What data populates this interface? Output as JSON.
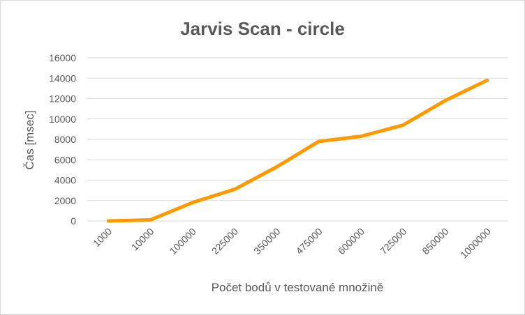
{
  "chart_data": {
    "type": "line",
    "title": "Jarvis Scan - circle",
    "xlabel": "Počet bodů v testované množině",
    "ylabel": "Čas [msec]",
    "categories": [
      "1000",
      "10000",
      "100000",
      "225000",
      "350000",
      "475000",
      "600000",
      "725000",
      "850000",
      "1000000"
    ],
    "series": [
      {
        "values": [
          0,
          100,
          1800,
          3100,
          5300,
          7800,
          8300,
          9400,
          11800,
          13800
        ],
        "color": "#ff9900"
      }
    ],
    "ylim": [
      0,
      16000
    ],
    "yticks": [
      "0",
      "2000",
      "4000",
      "6000",
      "8000",
      "10000",
      "12000",
      "14000",
      "16000"
    ],
    "grid": true,
    "legend": "none"
  }
}
